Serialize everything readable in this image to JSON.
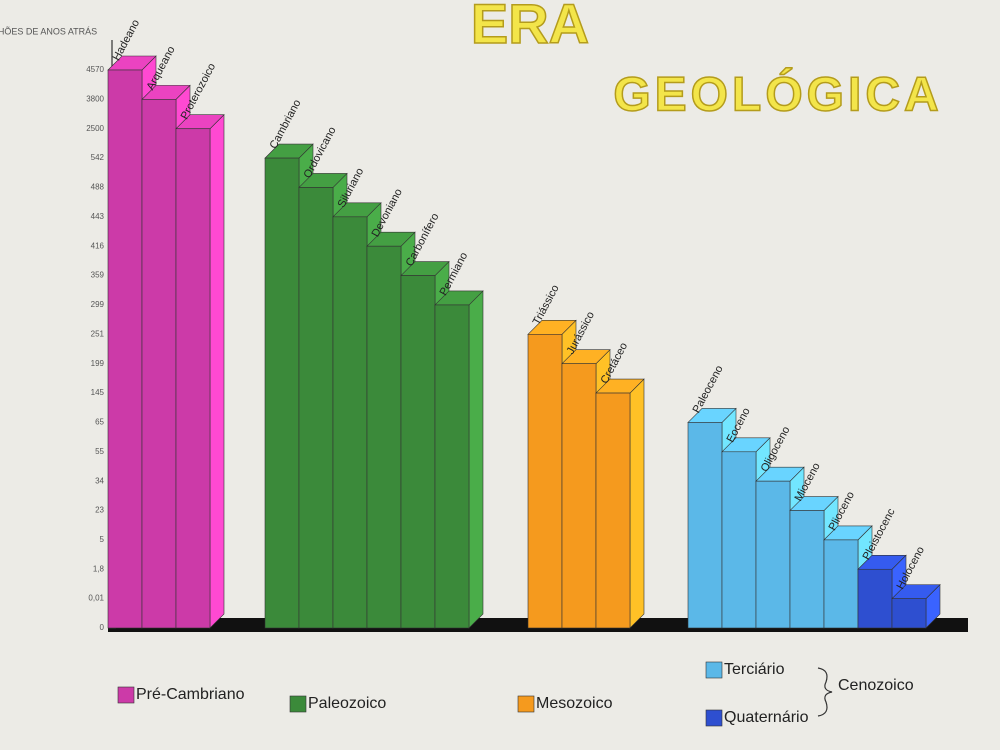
{
  "chart_data": {
    "type": "bar",
    "title": "ERA",
    "subtitle": "GEOLÓGICA",
    "y_label": "MILHÕES DE ANOS ATRÁS",
    "ylim": [
      0,
      4570
    ],
    "yticks": [
      4570,
      3800,
      2500,
      542,
      488,
      443,
      416,
      359,
      299,
      251,
      199,
      145,
      65,
      55,
      34,
      23,
      5,
      {
        "value": 1.8,
        "label": "1,8"
      },
      {
        "value": 0.01,
        "label": "0,01"
      },
      0
    ],
    "series": [
      {
        "name": "Pré-Cambriano",
        "color": "#cc3aa8",
        "categories": [
          "Hadeano",
          "Arqueano",
          "Proterozoico"
        ],
        "values": [
          4570,
          3800,
          2500
        ]
      },
      {
        "name": "Paleozoico",
        "color": "#3b8a3a",
        "categories": [
          "Cambriano",
          "Ordovicano",
          "Siluriano",
          "Devoniano",
          "Carbonífero",
          "Permiano"
        ],
        "values": [
          542,
          488,
          443,
          416,
          359,
          299
        ]
      },
      {
        "name": "Mesozoico",
        "color": "#f59a1e",
        "categories": [
          "Triássico",
          "Jurássico",
          "Cretáceo"
        ],
        "values": [
          251,
          199,
          145
        ]
      },
      {
        "name": "Terciário",
        "color": "#5bb8e8",
        "categories": [
          "Paleoceno",
          "Eoceno",
          "Oligoceno",
          "Mioceno",
          "Plioceno"
        ],
        "values": [
          65,
          55,
          34,
          23,
          5
        ]
      },
      {
        "name": "Quaternário",
        "color": "#2e4fd0",
        "categories": [
          "Pleistocenc",
          "Holoceno"
        ],
        "values": [
          1.8,
          0.01
        ]
      }
    ],
    "cenozoic_label": "Cenozoico"
  }
}
